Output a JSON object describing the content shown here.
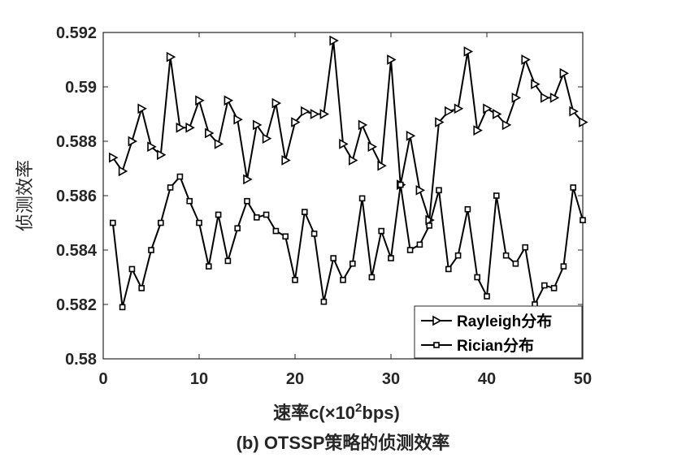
{
  "chart_data": {
    "type": "line",
    "xlabel_prefix": "速率c(×10",
    "xlabel_sup": "2",
    "xlabel_suffix": "bps)",
    "ylabel": "侦测效率",
    "xlim": [
      0,
      50
    ],
    "ylim": [
      0.58,
      0.592
    ],
    "xticks": [
      0,
      10,
      20,
      30,
      40,
      50
    ],
    "yticks": [
      0.58,
      0.582,
      0.584,
      0.586,
      0.588,
      0.59,
      0.592
    ],
    "ytick_labels": [
      "0.58",
      "0.582",
      "0.584",
      "0.586",
      "0.588",
      "0.59",
      "0.592"
    ],
    "grid": false,
    "legend_position": "bottom-right",
    "x": [
      1,
      2,
      3,
      4,
      5,
      6,
      7,
      8,
      9,
      10,
      11,
      12,
      13,
      14,
      15,
      16,
      17,
      18,
      19,
      20,
      21,
      22,
      23,
      24,
      25,
      26,
      27,
      28,
      29,
      30,
      31,
      32,
      33,
      34,
      35,
      36,
      37,
      38,
      39,
      40,
      41,
      42,
      43,
      44,
      45,
      46,
      47,
      48,
      49,
      50
    ],
    "series": [
      {
        "name": "Rayleigh分布",
        "marker": "triangle-right",
        "values": [
          0.5874,
          0.5869,
          0.588,
          0.5892,
          0.5878,
          0.5875,
          0.5911,
          0.5885,
          0.5885,
          0.5895,
          0.5883,
          0.5879,
          0.5895,
          0.5888,
          0.5866,
          0.5886,
          0.5881,
          0.5894,
          0.5873,
          0.5887,
          0.5891,
          0.589,
          0.589,
          0.5917,
          0.5879,
          0.5873,
          0.5886,
          0.5878,
          0.5871,
          0.591,
          0.5864,
          0.5882,
          0.5862,
          0.5851,
          0.5887,
          0.5891,
          0.5892,
          0.5913,
          0.5884,
          0.5892,
          0.589,
          0.5886,
          0.5896,
          0.591,
          0.5901,
          0.5896,
          0.5896,
          0.5905,
          0.5891,
          0.5887
        ]
      },
      {
        "name": "Rician分布",
        "marker": "square",
        "values": [
          0.585,
          0.5819,
          0.5833,
          0.5826,
          0.584,
          0.585,
          0.5863,
          0.5867,
          0.5858,
          0.585,
          0.5834,
          0.5853,
          0.5836,
          0.5848,
          0.5858,
          0.5852,
          0.5853,
          0.5847,
          0.5845,
          0.5829,
          0.5854,
          0.5846,
          0.5821,
          0.5837,
          0.5829,
          0.5835,
          0.5859,
          0.583,
          0.5847,
          0.5837,
          0.5864,
          0.584,
          0.5842,
          0.5849,
          0.5862,
          0.5833,
          0.5838,
          0.5855,
          0.583,
          0.5823,
          0.586,
          0.5838,
          0.5835,
          0.5841,
          0.582,
          0.5827,
          0.5826,
          0.5834,
          0.5863,
          0.5851
        ]
      }
    ]
  },
  "caption": "(b) OTSSP策略的侦测效率"
}
